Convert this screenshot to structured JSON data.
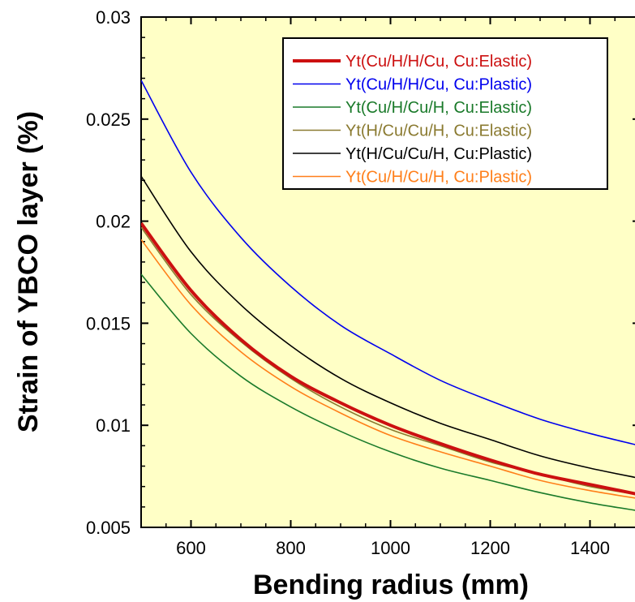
{
  "chart_data": {
    "type": "line",
    "title": "",
    "xlabel": "Bending radius (mm)",
    "ylabel": "Strain of YBCO layer (%)",
    "xlim": [
      500,
      1500
    ],
    "ylim": [
      0.005,
      0.03
    ],
    "x_ticks": [
      600,
      800,
      1000,
      1200,
      1400
    ],
    "x_tick_labels": [
      "600",
      "800",
      "1000",
      "1200",
      "1400"
    ],
    "y_ticks": [
      0.005,
      0.01,
      0.015,
      0.02,
      0.025,
      0.03
    ],
    "y_tick_labels": [
      "0.005",
      "0.01",
      "0.015",
      "0.02",
      "0.025",
      "0.03"
    ],
    "grid": false,
    "background_color": "#ffffc6",
    "legend_position": "top-right",
    "series": [
      {
        "name": "Yt(Cu/H/H/Cu, Cu:Elastic)",
        "color": "#cc1010",
        "style": "thick",
        "x": [
          500,
          600,
          700,
          800,
          900,
          1000,
          1100,
          1200,
          1300,
          1400,
          1500
        ],
        "y": [
          0.0199,
          0.0166,
          0.0142,
          0.0124,
          0.0111,
          0.01,
          0.0091,
          0.0083,
          0.0076,
          0.0071,
          0.0066
        ]
      },
      {
        "name": "Yt(Cu/H/H/Cu, Cu:Plastic)",
        "color": "#0000ee",
        "style": "thin",
        "x": [
          500,
          600,
          700,
          800,
          900,
          1000,
          1100,
          1200,
          1300,
          1400,
          1500
        ],
        "y": [
          0.0269,
          0.0224,
          0.0192,
          0.0168,
          0.0149,
          0.0135,
          0.0122,
          0.0112,
          0.0103,
          0.0096,
          0.009
        ]
      },
      {
        "name": "Yt(Cu/H/Cu/H, Cu:Elastic)",
        "color": "#1a7a2a",
        "style": "thin",
        "x": [
          500,
          600,
          700,
          800,
          900,
          1000,
          1100,
          1200,
          1300,
          1400,
          1500
        ],
        "y": [
          0.0174,
          0.0145,
          0.0124,
          0.0109,
          0.0097,
          0.0087,
          0.0079,
          0.0073,
          0.0067,
          0.0062,
          0.0058
        ]
      },
      {
        "name": "Yt(H/Cu/Cu/H, Cu:Elastic)",
        "color": "#8a7a30",
        "style": "thin",
        "x": [
          500,
          600,
          700,
          800,
          900,
          1000,
          1100,
          1200,
          1300,
          1400,
          1500
        ],
        "y": [
          0.0197,
          0.0164,
          0.0141,
          0.0123,
          0.0109,
          0.0098,
          0.009,
          0.0082,
          0.0076,
          0.007,
          0.0066
        ]
      },
      {
        "name": "Yt(H/Cu/Cu/H, Cu:Plastic)",
        "color": "#000000",
        "style": "thin",
        "x": [
          500,
          600,
          700,
          800,
          900,
          1000,
          1100,
          1200,
          1300,
          1400,
          1500
        ],
        "y": [
          0.0222,
          0.0185,
          0.0159,
          0.0139,
          0.0123,
          0.0111,
          0.0101,
          0.0093,
          0.0085,
          0.0079,
          0.0074
        ]
      },
      {
        "name": "Yt(Cu/H/Cu/H, Cu:Plastic)",
        "color": "#ff7f1a",
        "style": "thin",
        "x": [
          500,
          600,
          700,
          800,
          900,
          1000,
          1100,
          1200,
          1300,
          1400,
          1500
        ],
        "y": [
          0.0191,
          0.0159,
          0.0136,
          0.0119,
          0.0106,
          0.0095,
          0.0087,
          0.008,
          0.0073,
          0.0068,
          0.0064
        ]
      }
    ]
  }
}
